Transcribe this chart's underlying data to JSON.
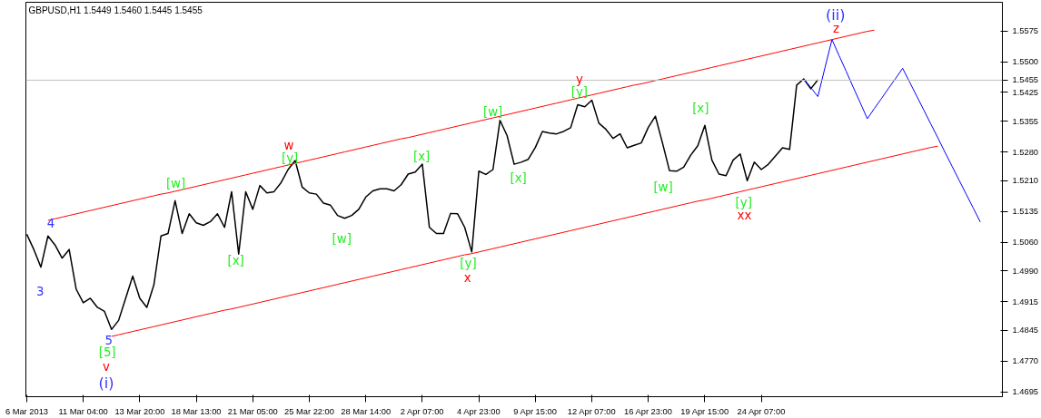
{
  "chart_data": {
    "type": "line",
    "title": "GBPUSD,H1  1.5449 1.5460 1.5445 1.5455",
    "categories": [
      "6 Mar 2013",
      null,
      null,
      null,
      null,
      null,
      null,
      null,
      "11 Mar 04:00",
      null,
      null,
      null,
      null,
      null,
      null,
      null,
      "13 Mar 20:00",
      null,
      null,
      null,
      null,
      null,
      null,
      null,
      "18 Mar 13:00",
      null,
      null,
      null,
      null,
      null,
      null,
      null,
      "21 Mar 05:00",
      null,
      null,
      null,
      null,
      null,
      null,
      null,
      "25 Mar 22:00",
      null,
      null,
      null,
      null,
      null,
      null,
      null,
      "28 Mar 14:00",
      null,
      null,
      null,
      null,
      null,
      null,
      null,
      "2 Apr 07:00",
      null,
      null,
      null,
      null,
      null,
      null,
      null,
      "4 Apr 23:00",
      null,
      null,
      null,
      null,
      null,
      null,
      null,
      "9 Apr 15:00",
      null,
      null,
      null,
      null,
      null,
      null,
      null,
      "12 Apr 07:00",
      null,
      null,
      null,
      null,
      null,
      null,
      null,
      "16 Apr 23:00",
      null,
      null,
      null,
      null,
      null,
      null,
      null,
      "19 Apr 15:00",
      null,
      null,
      null,
      null,
      null,
      null,
      null,
      "24 Apr 07:00",
      null,
      null,
      null,
      null,
      null,
      null,
      null,
      null,
      null,
      null,
      null,
      null,
      null,
      null,
      null,
      null,
      null,
      null,
      null,
      null,
      null,
      null,
      null,
      null,
      null,
      null,
      null,
      null,
      null,
      null,
      null,
      null,
      null,
      null
    ],
    "ylim": [
      1.4683,
      1.5645
    ],
    "yticks": [
      {
        "value": 1.4695,
        "label": "1.4695"
      },
      {
        "value": 1.477,
        "label": "1.4770"
      },
      {
        "value": 1.4845,
        "label": "1.4845"
      },
      {
        "value": 1.4915,
        "label": "1.4915"
      },
      {
        "value": 1.499,
        "label": "1.4990"
      },
      {
        "value": 1.506,
        "label": "1.5060"
      },
      {
        "value": 1.5135,
        "label": "1.5135"
      },
      {
        "value": 1.521,
        "label": "1.5210"
      },
      {
        "value": 1.528,
        "label": "1.5280"
      },
      {
        "value": 1.5355,
        "label": "1.5355"
      },
      {
        "value": 1.5425,
        "label": "1.5425"
      },
      {
        "value": 1.55,
        "label": "1.5500"
      },
      {
        "value": 1.5575,
        "label": "1.5575"
      }
    ],
    "grid": false,
    "marker": "none",
    "line_style": "solid",
    "ref_lines": [
      {
        "axis": "y",
        "value": 1.5455,
        "label": "1.5455",
        "color": "#c0c0c0"
      }
    ],
    "series": [
      {
        "color": "#000000",
        "values": [
          1.5079,
          1.5042,
          1.4999,
          1.5075,
          1.5053,
          1.5021,
          1.5042,
          1.4945,
          1.4912,
          1.4923,
          1.4901,
          1.4891,
          1.4847,
          1.4869,
          1.4923,
          1.4977,
          1.4923,
          1.4901,
          1.4956,
          1.5075,
          1.5081,
          1.5161,
          1.5081,
          1.5129,
          1.5107,
          1.5101,
          1.511,
          1.5129,
          1.5096,
          1.5183,
          1.5031,
          1.5183,
          1.514,
          1.5198,
          1.518,
          1.5183,
          1.5205,
          1.5237,
          1.5259,
          1.5194,
          1.518,
          1.5177,
          1.5155,
          1.515,
          1.5125,
          1.5118,
          1.5125,
          1.514,
          1.517,
          1.5185,
          1.519,
          1.519,
          1.5185,
          1.52,
          1.5226,
          1.5231,
          1.525,
          1.5096,
          1.5081,
          1.5081,
          1.513,
          1.5129,
          1.5096,
          1.5036,
          1.5233,
          1.5225,
          1.5237,
          1.5357,
          1.532,
          1.525,
          1.5255,
          1.5262,
          1.5291,
          1.533,
          1.5326,
          1.5324,
          1.533,
          1.5339,
          1.5395,
          1.539,
          1.5406,
          1.535,
          1.5335,
          1.5313,
          1.5324,
          1.529,
          1.5296,
          1.5302,
          1.534,
          1.5367,
          1.5302,
          1.5234,
          1.5233,
          1.5243,
          1.5272,
          1.5295,
          1.5345,
          1.526,
          1.5226,
          1.5222,
          1.526,
          1.5275,
          1.521,
          1.5255,
          1.5237,
          1.525,
          1.527,
          1.529,
          1.5286,
          1.5443,
          1.5458,
          1.5434,
          1.5456,
          null,
          null,
          null,
          null,
          null,
          null,
          null,
          null,
          null,
          null,
          null,
          null,
          null,
          null,
          null,
          null,
          null,
          null,
          null,
          null,
          null,
          null,
          null,
          null,
          null,
          null
        ]
      },
      {
        "color": "#0000ff",
        "values": [
          null,
          null,
          null,
          null,
          null,
          null,
          null,
          null,
          null,
          null,
          null,
          null,
          null,
          null,
          null,
          null,
          null,
          null,
          null,
          null,
          null,
          null,
          null,
          null,
          null,
          null,
          null,
          null,
          null,
          null,
          null,
          null,
          null,
          null,
          null,
          null,
          null,
          null,
          null,
          null,
          null,
          null,
          null,
          null,
          null,
          null,
          null,
          null,
          null,
          null,
          null,
          null,
          null,
          null,
          null,
          null,
          null,
          null,
          null,
          null,
          null,
          null,
          null,
          null,
          null,
          null,
          null,
          null,
          null,
          null,
          null,
          null,
          null,
          null,
          null,
          null,
          null,
          null,
          null,
          null,
          null,
          null,
          null,
          null,
          null,
          null,
          null,
          null,
          null,
          null,
          null,
          null,
          null,
          null,
          null,
          null,
          null,
          null,
          null,
          null,
          null,
          null,
          null,
          null,
          null,
          null,
          null,
          null,
          null,
          null,
          1.5458,
          1.5437,
          1.5415,
          1.5485,
          1.5554,
          1.5515,
          1.5477,
          1.5438,
          1.54,
          1.5361,
          1.5386,
          1.541,
          1.5435,
          1.5459,
          1.5484,
          1.545,
          1.5416,
          1.5382,
          1.5348,
          1.5314,
          1.5279,
          1.5245,
          1.5211,
          1.5177,
          1.5143,
          1.5109,
          null,
          null,
          null
        ]
      },
      {
        "color": "#ff0000",
        "values": [
          null,
          null,
          null,
          1.5113,
          1.5117,
          1.5121,
          1.5125,
          1.5129,
          1.5133,
          1.5137,
          1.5141,
          1.5145,
          1.5149,
          1.5153,
          1.5157,
          1.5161,
          1.5165,
          1.5169,
          1.5173,
          1.5177,
          1.518,
          1.5184,
          1.5188,
          1.5192,
          1.5196,
          1.52,
          1.5204,
          1.5208,
          1.5212,
          1.5216,
          1.522,
          1.5224,
          1.5228,
          1.5232,
          1.5236,
          1.524,
          1.5244,
          1.5248,
          1.5252,
          1.5256,
          1.526,
          1.5264,
          1.5268,
          1.5272,
          1.5276,
          1.528,
          1.5284,
          1.5288,
          1.5292,
          1.5296,
          1.53,
          1.5304,
          1.5308,
          1.5312,
          1.5315,
          1.5319,
          1.5323,
          1.5327,
          1.5331,
          1.5335,
          1.5339,
          1.5343,
          1.5347,
          1.5351,
          1.5355,
          1.5359,
          1.5363,
          1.5367,
          1.5371,
          1.5375,
          1.5379,
          1.5383,
          1.5387,
          1.5391,
          1.5395,
          1.5399,
          1.5403,
          1.5407,
          1.5411,
          1.5415,
          1.5419,
          1.5423,
          1.5427,
          1.5431,
          1.5435,
          1.5439,
          1.5443,
          1.5446,
          1.545,
          1.5454,
          1.5458,
          1.5462,
          1.5466,
          1.547,
          1.5474,
          1.5478,
          1.5482,
          1.5486,
          1.549,
          1.5494,
          1.5498,
          1.5502,
          1.5506,
          1.551,
          1.5514,
          1.5518,
          1.5522,
          1.5526,
          1.553,
          1.5534,
          1.5538,
          1.5542,
          1.5546,
          1.555,
          1.5554,
          1.5558,
          1.5562,
          1.5566,
          1.557,
          1.5574,
          1.5577,
          null,
          null,
          null,
          null,
          null,
          null,
          null,
          null,
          null,
          null,
          null,
          null,
          null,
          null,
          null,
          null,
          null,
          null
        ]
      },
      {
        "color": "#ff0000",
        "values": [
          null,
          null,
          null,
          null,
          null,
          null,
          null,
          null,
          null,
          null,
          null,
          null,
          1.483,
          1.4834,
          1.4838,
          1.4842,
          1.4846,
          1.485,
          1.4854,
          1.4858,
          1.4862,
          1.4866,
          1.487,
          1.4874,
          1.4878,
          1.4882,
          1.4886,
          1.489,
          1.4894,
          1.4897,
          1.4901,
          1.4905,
          1.4909,
          1.4913,
          1.4917,
          1.4921,
          1.4925,
          1.4929,
          1.4933,
          1.4937,
          1.4941,
          1.4945,
          1.4949,
          1.4953,
          1.4957,
          1.4961,
          1.4965,
          1.4969,
          1.4973,
          1.4977,
          1.4981,
          1.4985,
          1.4989,
          1.4993,
          1.4997,
          1.5001,
          1.5005,
          1.5009,
          1.5013,
          1.5017,
          1.5021,
          1.5025,
          1.5029,
          1.5032,
          1.5036,
          1.504,
          1.5044,
          1.5048,
          1.5052,
          1.5056,
          1.506,
          1.5064,
          1.5068,
          1.5072,
          1.5076,
          1.508,
          1.5084,
          1.5088,
          1.5092,
          1.5096,
          1.51,
          1.5104,
          1.5108,
          1.5112,
          1.5116,
          1.512,
          1.5124,
          1.5128,
          1.5132,
          1.5136,
          1.514,
          1.5144,
          1.5148,
          1.5152,
          1.5156,
          1.516,
          1.5163,
          1.5167,
          1.5171,
          1.5175,
          1.5179,
          1.5183,
          1.5187,
          1.5191,
          1.5195,
          1.5199,
          1.5203,
          1.5207,
          1.5211,
          1.5215,
          1.5219,
          1.5223,
          1.5227,
          1.5231,
          1.5235,
          1.5239,
          1.5243,
          1.5247,
          1.5251,
          1.5255,
          1.5259,
          1.5263,
          1.5267,
          1.5271,
          1.5275,
          1.5279,
          1.5283,
          1.5287,
          1.5291,
          1.5294,
          null,
          null,
          null,
          null,
          null,
          null,
          null,
          null,
          null
        ]
      }
    ],
    "annotations": [
      "4",
      "3",
      "5",
      "[5]",
      "v",
      "(i)",
      "[w]",
      "[x]",
      "w",
      "[y]",
      "[w]",
      "[x]",
      "[y]",
      "x",
      "[w]",
      "[x]",
      "y",
      "[y]",
      "[x]",
      "[w]",
      "[y]",
      "xx",
      "z",
      "(ii)"
    ]
  }
}
